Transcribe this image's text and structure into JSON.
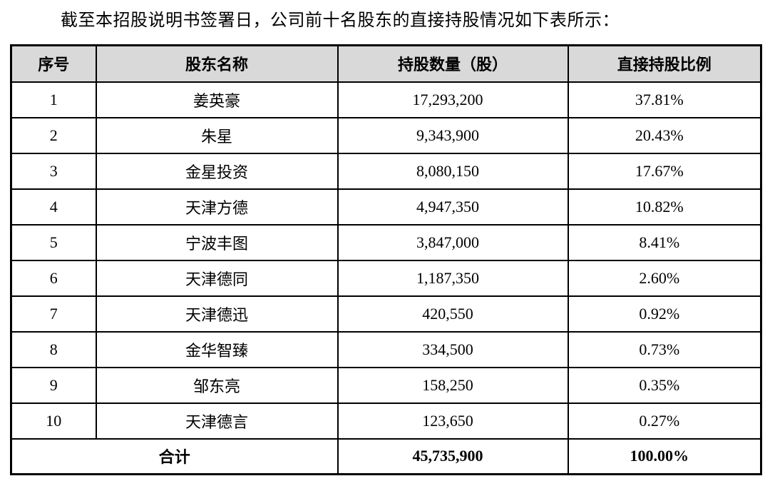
{
  "page": {
    "intro_text": "截至本招股说明书签署日，公司前十名股东的直接持股情况如下表所示："
  },
  "colors": {
    "header_background": "#d9d9d9",
    "border": "#000000",
    "text": "#000000"
  },
  "table": {
    "headers": {
      "no": "序号",
      "name": "股东名称",
      "shares": "持股数量（股）",
      "ratio": "直接持股比例"
    },
    "rows": [
      {
        "no": "1",
        "name": "姜英豪",
        "shares": "17,293,200",
        "ratio": "37.81%"
      },
      {
        "no": "2",
        "name": "朱星",
        "shares": "9,343,900",
        "ratio": "20.43%"
      },
      {
        "no": "3",
        "name": "金星投资",
        "shares": "8,080,150",
        "ratio": "17.67%"
      },
      {
        "no": "4",
        "name": "天津方德",
        "shares": "4,947,350",
        "ratio": "10.82%"
      },
      {
        "no": "5",
        "name": "宁波丰图",
        "shares": "3,847,000",
        "ratio": "8.41%"
      },
      {
        "no": "6",
        "name": "天津德同",
        "shares": "1,187,350",
        "ratio": "2.60%"
      },
      {
        "no": "7",
        "name": "天津德迅",
        "shares": "420,550",
        "ratio": "0.92%"
      },
      {
        "no": "8",
        "name": "金华智臻",
        "shares": "334,500",
        "ratio": "0.73%"
      },
      {
        "no": "9",
        "name": "邹东亮",
        "shares": "158,250",
        "ratio": "0.35%"
      },
      {
        "no": "10",
        "name": "天津德言",
        "shares": "123,650",
        "ratio": "0.27%"
      }
    ],
    "total": {
      "label": "合计",
      "shares": "45,735,900",
      "ratio": "100.00%"
    }
  }
}
